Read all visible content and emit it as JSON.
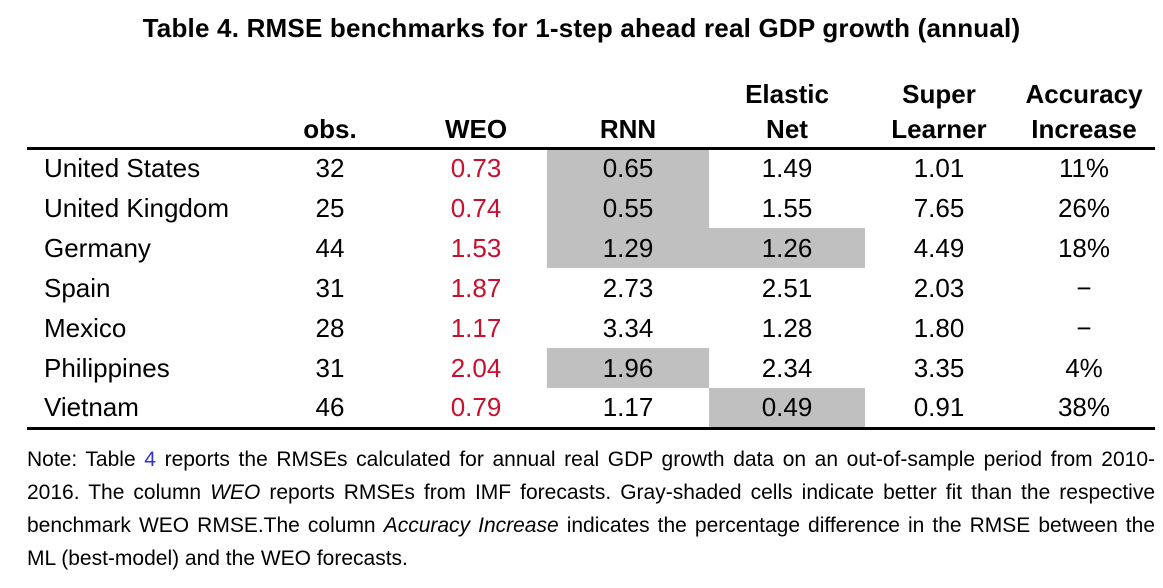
{
  "title": "Table 4. RMSE benchmarks for 1-step ahead real GDP growth (annual)",
  "colors": {
    "weo_value_text": "#c8102e",
    "shaded_cell": "#c0c0c0",
    "reference_link": "#3333cc",
    "rule": "#000000"
  },
  "table": {
    "columns": [
      {
        "id": "country",
        "line1": "",
        "line2": ""
      },
      {
        "id": "obs",
        "line1": "",
        "line2": "obs."
      },
      {
        "id": "weo",
        "line1": "",
        "line2": "WEO"
      },
      {
        "id": "rnn",
        "line1": "",
        "line2": "RNN"
      },
      {
        "id": "elastic_net",
        "line1": "Elastic",
        "line2": "Net"
      },
      {
        "id": "super_learner",
        "line1": "Super",
        "line2": "Learner"
      },
      {
        "id": "accuracy_increase",
        "line1": "Accuracy",
        "line2": "Increase"
      }
    ],
    "rows": [
      {
        "country": "United States",
        "obs": "32",
        "weo": "0.73",
        "rnn": "0.65",
        "elastic_net": "1.49",
        "super_learner": "1.01",
        "accuracy_increase": "11%",
        "shaded": [
          "rnn"
        ]
      },
      {
        "country": "United Kingdom",
        "obs": "25",
        "weo": "0.74",
        "rnn": "0.55",
        "elastic_net": "1.55",
        "super_learner": "7.65",
        "accuracy_increase": "26%",
        "shaded": [
          "rnn"
        ]
      },
      {
        "country": "Germany",
        "obs": "44",
        "weo": "1.53",
        "rnn": "1.29",
        "elastic_net": "1.26",
        "super_learner": "4.49",
        "accuracy_increase": "18%",
        "shaded": [
          "rnn",
          "elastic_net"
        ]
      },
      {
        "country": "Spain",
        "obs": "31",
        "weo": "1.87",
        "rnn": "2.73",
        "elastic_net": "2.51",
        "super_learner": "2.03",
        "accuracy_increase": "−",
        "shaded": []
      },
      {
        "country": "Mexico",
        "obs": "28",
        "weo": "1.17",
        "rnn": "3.34",
        "elastic_net": "1.28",
        "super_learner": "1.80",
        "accuracy_increase": "−",
        "shaded": []
      },
      {
        "country": "Philippines",
        "obs": "31",
        "weo": "2.04",
        "rnn": "1.96",
        "elastic_net": "2.34",
        "super_learner": "3.35",
        "accuracy_increase": "4%",
        "shaded": [
          "rnn"
        ]
      },
      {
        "country": "Vietnam",
        "obs": "46",
        "weo": "0.79",
        "rnn": "1.17",
        "elastic_net": "0.49",
        "super_learner": "0.91",
        "accuracy_increase": "38%",
        "shaded": [
          "elastic_net"
        ]
      }
    ]
  },
  "note": {
    "segments": [
      {
        "text": "Note: Table ",
        "style": "normal"
      },
      {
        "text": "4",
        "style": "link"
      },
      {
        "text": " reports the RMSEs calculated for annual real GDP growth data on an out-of-sample period from 2010-2016. The column ",
        "style": "normal"
      },
      {
        "text": "WEO",
        "style": "italic"
      },
      {
        "text": " reports RMSEs from IMF forecasts. Gray-shaded cells indicate better fit than the respective benchmark WEO RMSE.The column ",
        "style": "normal"
      },
      {
        "text": "Accuracy Increase",
        "style": "italic"
      },
      {
        "text": " indicates the percentage difference in the RMSE between the ML (best-model) and the WEO forecasts.",
        "style": "normal"
      }
    ]
  }
}
